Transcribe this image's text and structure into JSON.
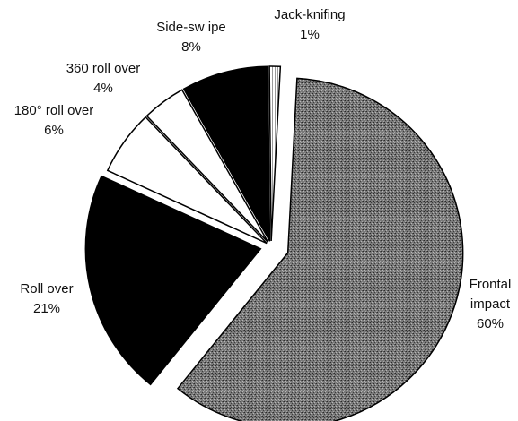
{
  "chart_data": {
    "type": "pie",
    "title": "",
    "legend": "none",
    "slices": [
      {
        "name": "Frontal impact",
        "label_lines": [
          "Frontal",
          "impact"
        ],
        "percent_label": "60%",
        "value": 60,
        "fill": "#6e6e6e",
        "pattern": "stipple"
      },
      {
        "name": "Roll over",
        "label_lines": [
          "Roll over"
        ],
        "percent_label": "21%",
        "value": 21,
        "fill": "#000000",
        "pattern": "solid"
      },
      {
        "name": "180° roll over",
        "label_lines": [
          "180° roll over"
        ],
        "percent_label": "6%",
        "value": 6,
        "fill": "#ffffff",
        "pattern": "solid"
      },
      {
        "name": "360 roll over",
        "label_lines": [
          "360 roll over"
        ],
        "percent_label": "4%",
        "value": 4,
        "fill": "#ffffff",
        "pattern": "solid"
      },
      {
        "name": "Side-swipe",
        "label_lines": [
          "Side-sw ipe"
        ],
        "percent_label": "8%",
        "value": 8,
        "fill": "#000000",
        "pattern": "solid"
      },
      {
        "name": "Jack-knifing",
        "label_lines": [
          "Jack-knifing"
        ],
        "percent_label": "1%",
        "value": 1,
        "fill": "#dddddd",
        "pattern": "hatch"
      }
    ],
    "colors": {
      "outline": "#000000",
      "text": "#111111"
    }
  }
}
